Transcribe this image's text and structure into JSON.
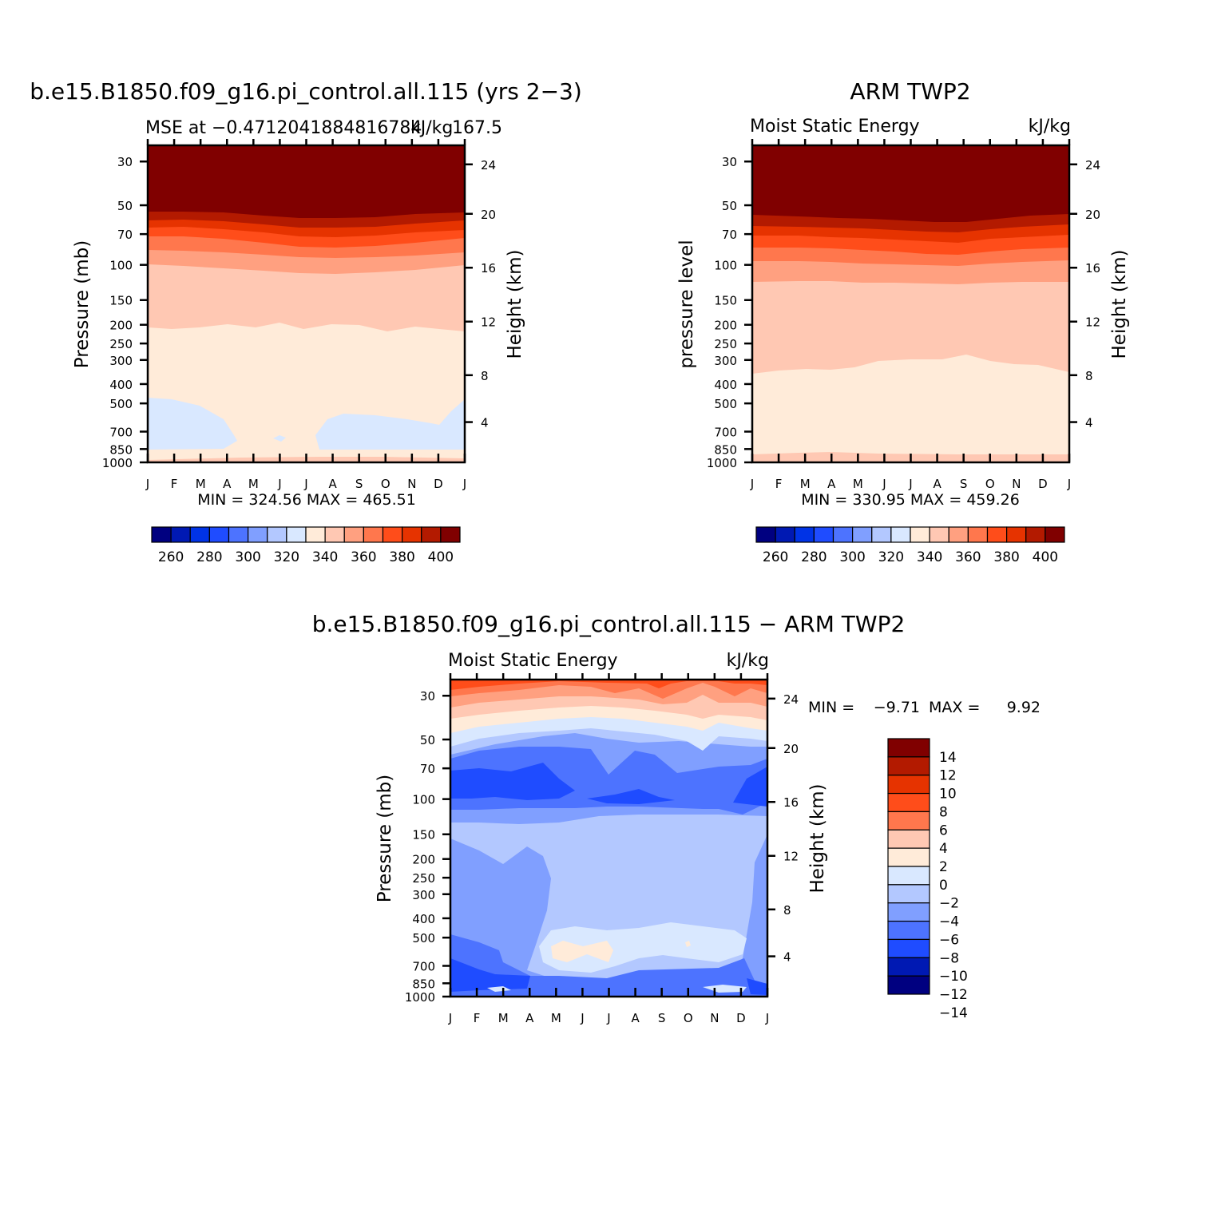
{
  "palettes": {
    "full": [
      "#000080",
      "#0019b3",
      "#0033e6",
      "#1f4cff",
      "#4d73ff",
      "#809fff",
      "#b3c8ff",
      "#d9e8ff",
      "#ffebd9",
      "#ffc8b3",
      "#ffa080",
      "#ff774d",
      "#ff4d1a",
      "#e63300",
      "#b31a00",
      "#800000"
    ],
    "diff": [
      "#000080",
      "#0019b3",
      "#1f4cff",
      "#4d73ff",
      "#809fff",
      "#b3c8ff",
      "#d9e8ff",
      "#ffebd9",
      "#ffc8b3",
      "#ff774d",
      "#ff4d1a",
      "#e63300",
      "#b31a00",
      "#800000"
    ]
  },
  "chart_data": [
    {
      "id": "model",
      "type": "contour",
      "title": "b.e15.B1850.f09_g16.pi_control.all.115 (yrs 2−3)",
      "subtitle_left": "MSE at −0.4712041884816784",
      "subtitle_right": "kJ/kg",
      "subtitle_extra": "167.5",
      "ylabel": "Pressure (mb)",
      "ylabel_right": "Height (km)",
      "months": [
        "J",
        "F",
        "M",
        "A",
        "M",
        "J",
        "J",
        "A",
        "S",
        "O",
        "N",
        "D",
        "J"
      ],
      "pressure_ticks": [
        "30",
        "50",
        "70",
        "100",
        "150",
        "200",
        "250",
        "300",
        "400",
        "500",
        "700",
        "850",
        "1000"
      ],
      "height_ticks": [
        "24",
        "20",
        "16",
        "12",
        "8",
        "4"
      ],
      "stats": "MIN = 324.56 MAX = 465.51",
      "colorbar_labels": [
        "260",
        "280",
        "300",
        "320",
        "340",
        "360",
        "380",
        "400"
      ],
      "levels": [
        {
          "name": "level-bg",
          "range": "330-340",
          "color": "#ffebd9"
        },
        {
          "name": "level-320-330",
          "range": "320-330",
          "color": "#d9e8ff"
        },
        {
          "name": "level-340-350",
          "range": "340-350",
          "color": "#ffc8b3"
        },
        {
          "name": "level-350-360",
          "range": "350-360",
          "color": "#ffa080"
        },
        {
          "name": "level-360-370",
          "range": "360-370",
          "color": "#ff774d"
        },
        {
          "name": "level-370-380",
          "range": "370-380",
          "color": "#ff4d1a"
        },
        {
          "name": "level-380-390",
          "range": "380-390",
          "color": "#e63300"
        },
        {
          "name": "level-390-400",
          "range": "390-400",
          "color": "#b31a00"
        },
        {
          "name": "level-400plus",
          "range": ">400",
          "color": "#800000"
        }
      ]
    },
    {
      "id": "obs",
      "type": "contour",
      "title": "ARM TWP2",
      "subtitle_left": "Moist Static Energy",
      "subtitle_right": "kJ/kg",
      "ylabel": "pressure level",
      "ylabel_right": "Height (km)",
      "months": [
        "J",
        "F",
        "M",
        "A",
        "M",
        "J",
        "J",
        "A",
        "S",
        "O",
        "N",
        "D",
        "J"
      ],
      "pressure_ticks": [
        "30",
        "50",
        "70",
        "100",
        "150",
        "200",
        "250",
        "300",
        "400",
        "500",
        "700",
        "850",
        "1000"
      ],
      "height_ticks": [
        "24",
        "20",
        "16",
        "12",
        "8",
        "4"
      ],
      "stats": "MIN = 330.95 MAX = 459.26",
      "colorbar_labels": [
        "260",
        "280",
        "300",
        "320",
        "340",
        "360",
        "380",
        "400"
      ],
      "levels": [
        {
          "name": "level-bg",
          "range": "330-340",
          "color": "#ffebd9"
        },
        {
          "name": "level-340-350",
          "range": "340-350",
          "color": "#ffc8b3"
        },
        {
          "name": "level-350-360",
          "range": "350-360",
          "color": "#ffa080"
        },
        {
          "name": "level-360-370",
          "range": "360-370",
          "color": "#ff774d"
        },
        {
          "name": "level-370-380",
          "range": "370-380",
          "color": "#ff4d1a"
        },
        {
          "name": "level-380-390",
          "range": "380-390",
          "color": "#e63300"
        },
        {
          "name": "level-390-400",
          "range": "390-400",
          "color": "#b31a00"
        },
        {
          "name": "level-400plus",
          "range": ">400",
          "color": "#800000"
        }
      ]
    },
    {
      "id": "diff",
      "type": "contour",
      "title": "b.e15.B1850.f09_g16.pi_control.all.115 − ARM TWP2",
      "subtitle_left": "Moist Static Energy",
      "subtitle_right": "kJ/kg",
      "ylabel": "Pressure (mb)",
      "ylabel_right": "Height (km)",
      "months": [
        "J",
        "F",
        "M",
        "A",
        "M",
        "J",
        "J",
        "A",
        "S",
        "O",
        "N",
        "D",
        "J"
      ],
      "pressure_ticks": [
        "30",
        "50",
        "70",
        "100",
        "150",
        "200",
        "250",
        "300",
        "400",
        "500",
        "700",
        "850",
        "1000"
      ],
      "height_ticks": [
        "24",
        "20",
        "16",
        "12",
        "8",
        "4"
      ],
      "stats_min_label": "MIN =",
      "stats_min": "−9.71",
      "stats_max_label": "MAX =",
      "stats_max": "9.92",
      "colorbar_labels": [
        "14",
        "12",
        "10",
        "8",
        "6",
        "4",
        "2",
        "0",
        "−2",
        "−4",
        "−6",
        "−8",
        "−10",
        "−12",
        "−14"
      ],
      "levels": [
        {
          "name": "level-bg",
          "range": "-4 to -2",
          "color": "#b3c8ff"
        },
        {
          "name": "level-neg6-neg4",
          "range": "-6 to -4",
          "color": "#809fff"
        },
        {
          "name": "level-neg8-neg6",
          "range": "-8 to -6",
          "color": "#4d73ff"
        },
        {
          "name": "level-neg10-neg8",
          "range": "-10 to -8",
          "color": "#1f4cff"
        },
        {
          "name": "level-neg2-0",
          "range": "-2 to 0",
          "color": "#d9e8ff"
        },
        {
          "name": "level-0-2",
          "range": "0 to 2",
          "color": "#ffebd9"
        },
        {
          "name": "level-2-4",
          "range": "2 to 4",
          "color": "#ffc8b3"
        },
        {
          "name": "level-4-6",
          "range": "4 to 6",
          "color": "#ffa080"
        },
        {
          "name": "level-6-8",
          "range": "6 to 8",
          "color": "#ff774d"
        },
        {
          "name": "level-8-10",
          "range": "8 to 10",
          "color": "#ff4d1a"
        }
      ]
    }
  ]
}
